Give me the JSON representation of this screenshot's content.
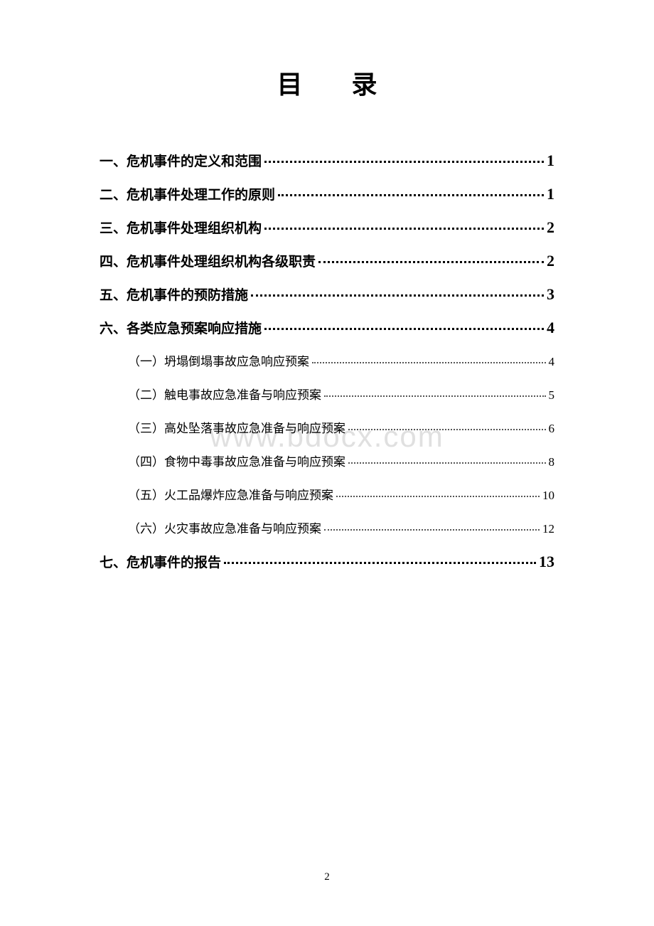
{
  "title": "目  录",
  "toc": {
    "items": [
      {
        "label": "一、危机事件的定义和范围",
        "page": "1",
        "level": "main"
      },
      {
        "label": "二、危机事件处理工作的原则",
        "page": "1",
        "level": "main"
      },
      {
        "label": "三、危机事件处理组织机构",
        "page": "2",
        "level": "main"
      },
      {
        "label": "四、危机事件处理组织机构各级职责",
        "page": "2",
        "level": "main"
      },
      {
        "label": "五、危机事件的预防措施",
        "page": "3",
        "level": "main"
      },
      {
        "label": "六、各类应急预案响应措施",
        "page": "4",
        "level": "main"
      },
      {
        "label": "（一）坍塌倒塌事故应急响应预案",
        "page": "4",
        "level": "sub"
      },
      {
        "label": "（二）触电事故应急准备与响应预案",
        "page": "5",
        "level": "sub"
      },
      {
        "label": "（三）高处坠落事故应急准备与响应预案",
        "page": "6",
        "level": "sub"
      },
      {
        "label": "（四）食物中毒事故应急准备与响应预案",
        "page": "8",
        "level": "sub"
      },
      {
        "label": "（五）火工品爆炸应急准备与响应预案",
        "page": "10",
        "level": "sub"
      },
      {
        "label": "（六）火灾事故应急准备与响应预案",
        "page": "12",
        "level": "sub"
      },
      {
        "label": "七、危机事件的报告",
        "page": "13",
        "level": "main"
      }
    ]
  },
  "watermark": "www.bdocx.com",
  "pageNumber": "2",
  "colors": {
    "background": "#ffffff",
    "text": "#000000",
    "watermark": "#e0e0e0"
  },
  "typography": {
    "titleFontSize": 36,
    "mainItemFontSize": 19,
    "subItemFontSize": 17,
    "mainPageFontSize": 22,
    "fontFamily": "SimSun"
  }
}
